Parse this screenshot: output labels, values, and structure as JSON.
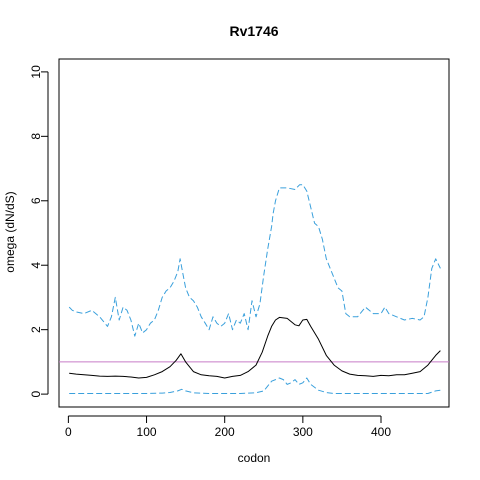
{
  "chart_data": {
    "type": "line",
    "title": "Rv1746",
    "xlabel": "codon",
    "ylabel": "omega (dN/dS)",
    "xlim": [
      -12,
      487
    ],
    "ylim": [
      -0.4,
      10.4
    ],
    "xticks": [
      0,
      100,
      200,
      300,
      400
    ],
    "yticks": [
      0,
      2,
      4,
      6,
      8,
      10
    ],
    "grid": false,
    "legend": "none",
    "reference_line": {
      "y": 1,
      "color": "#c77cc7"
    },
    "series": [
      {
        "style": "solid",
        "color": "#000000",
        "x": [
          1,
          10,
          20,
          30,
          40,
          50,
          60,
          70,
          80,
          90,
          100,
          110,
          120,
          130,
          138,
          144,
          150,
          160,
          170,
          180,
          190,
          200,
          210,
          220,
          230,
          240,
          248,
          255,
          260,
          265,
          270,
          280,
          290,
          295,
          300,
          305,
          310,
          320,
          330,
          340,
          350,
          360,
          370,
          380,
          390,
          400,
          410,
          420,
          430,
          440,
          450,
          460,
          470,
          476
        ],
        "y": [
          0.65,
          0.62,
          0.6,
          0.58,
          0.56,
          0.55,
          0.56,
          0.55,
          0.53,
          0.5,
          0.52,
          0.6,
          0.7,
          0.85,
          1.05,
          1.25,
          1.0,
          0.7,
          0.6,
          0.57,
          0.55,
          0.5,
          0.55,
          0.58,
          0.7,
          0.9,
          1.3,
          1.8,
          2.1,
          2.3,
          2.38,
          2.35,
          2.15,
          2.12,
          2.3,
          2.32,
          2.1,
          1.7,
          1.2,
          0.9,
          0.72,
          0.62,
          0.58,
          0.57,
          0.55,
          0.58,
          0.57,
          0.6,
          0.6,
          0.65,
          0.7,
          0.9,
          1.2,
          1.35
        ]
      },
      {
        "style": "dashed",
        "color": "#3aa0dc",
        "x": [
          1,
          5,
          10,
          20,
          30,
          40,
          50,
          55,
          60,
          65,
          70,
          75,
          80,
          85,
          90,
          95,
          100,
          105,
          110,
          115,
          120,
          125,
          130,
          135,
          140,
          143,
          146,
          150,
          155,
          160,
          165,
          170,
          175,
          180,
          185,
          190,
          195,
          200,
          205,
          210,
          215,
          220,
          225,
          230,
          235,
          240,
          245,
          250,
          255,
          260,
          262,
          265,
          270,
          280,
          290,
          296,
          300,
          305,
          310,
          315,
          320,
          325,
          330,
          335,
          340,
          345,
          350,
          355,
          360,
          370,
          380,
          390,
          400,
          405,
          410,
          420,
          430,
          440,
          450,
          455,
          460,
          465,
          470,
          476
        ],
        "y": [
          2.7,
          2.6,
          2.55,
          2.5,
          2.6,
          2.4,
          2.1,
          2.4,
          3.0,
          2.3,
          2.7,
          2.6,
          2.3,
          1.8,
          2.2,
          1.9,
          2.0,
          2.2,
          2.3,
          2.6,
          3.0,
          3.2,
          3.3,
          3.5,
          3.8,
          4.2,
          3.8,
          3.3,
          3.0,
          2.9,
          2.7,
          2.4,
          2.2,
          2.0,
          2.4,
          2.2,
          2.1,
          2.2,
          2.5,
          2.0,
          2.3,
          2.2,
          2.5,
          2.0,
          2.9,
          2.4,
          2.8,
          3.7,
          4.5,
          5.2,
          5.6,
          6.0,
          6.4,
          6.4,
          6.35,
          6.5,
          6.5,
          6.3,
          5.8,
          5.3,
          5.2,
          4.8,
          4.2,
          3.9,
          3.6,
          3.3,
          3.2,
          2.5,
          2.4,
          2.4,
          2.7,
          2.5,
          2.5,
          2.7,
          2.5,
          2.4,
          2.3,
          2.35,
          2.3,
          2.4,
          3.0,
          3.9,
          4.2,
          3.9
        ]
      },
      {
        "style": "dashed",
        "color": "#3aa0dc",
        "x": [
          1,
          20,
          40,
          60,
          80,
          100,
          120,
          130,
          140,
          145,
          150,
          160,
          180,
          200,
          220,
          240,
          250,
          255,
          260,
          265,
          270,
          275,
          280,
          285,
          290,
          295,
          300,
          305,
          310,
          320,
          330,
          340,
          360,
          380,
          400,
          420,
          440,
          460,
          470,
          476
        ],
        "y": [
          0.02,
          0.02,
          0.02,
          0.02,
          0.02,
          0.02,
          0.03,
          0.05,
          0.1,
          0.15,
          0.1,
          0.04,
          0.02,
          0.02,
          0.02,
          0.04,
          0.1,
          0.25,
          0.4,
          0.45,
          0.5,
          0.45,
          0.3,
          0.35,
          0.45,
          0.3,
          0.35,
          0.5,
          0.3,
          0.12,
          0.05,
          0.02,
          0.02,
          0.02,
          0.02,
          0.02,
          0.02,
          0.02,
          0.1,
          0.12
        ]
      }
    ]
  }
}
